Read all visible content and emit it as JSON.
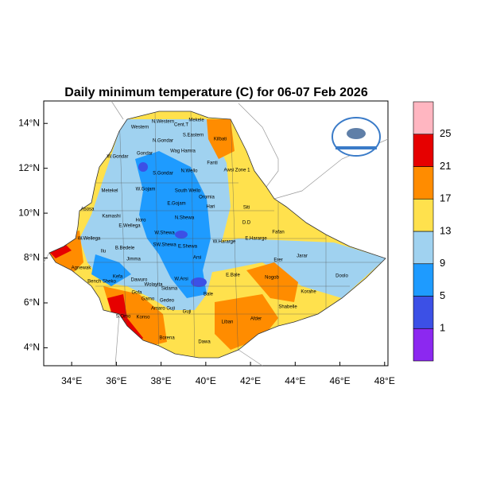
{
  "map": {
    "title": "Daily minimum temperature (C) for 06-07 Feb 2026",
    "xlim": [
      32.75,
      48.15
    ],
    "ylim": [
      3.2,
      15
    ],
    "xticks": [
      {
        "value": 34,
        "label": "34°E"
      },
      {
        "value": 36,
        "label": "36°E"
      },
      {
        "value": 38,
        "label": "38°E"
      },
      {
        "value": 40,
        "label": "40°E"
      },
      {
        "value": 42,
        "label": "42°E"
      },
      {
        "value": 44,
        "label": "44°E"
      },
      {
        "value": 46,
        "label": "46°E"
      },
      {
        "value": 48,
        "label": "48°E"
      }
    ],
    "yticks": [
      {
        "value": 4,
        "label": "4°N"
      },
      {
        "value": 6,
        "label": "6°N"
      },
      {
        "value": 8,
        "label": "8°N"
      },
      {
        "value": 10,
        "label": "10°N"
      },
      {
        "value": 12,
        "label": "12°N"
      },
      {
        "value": 14,
        "label": "14°N"
      }
    ],
    "colorbar": {
      "levels": [
        1,
        5,
        9,
        13,
        17,
        21,
        25
      ],
      "colors": [
        "#8c28f0",
        "#3c50e6",
        "#1e9bff",
        "#a0d2f0",
        "#ffe14d",
        "#ff8c00",
        "#e60000",
        "#ffb6c1"
      ]
    },
    "regions": [
      "Western",
      "N.Western",
      "Cent.T",
      "Mekele",
      "S.Eastern",
      "N.Gondar",
      "Kilbati",
      "Wag Hamra",
      "W.Gondar",
      "Gondar",
      "S.Gondar",
      "N.Wello",
      "Fanti",
      "Awsi Zone 1",
      "Metekel",
      "W.Gojam",
      "South Wello",
      "Oromia",
      "E.Gojam",
      "Hari",
      "Siti",
      "Asosa",
      "Kamashi",
      "Horo",
      "N.Shewa",
      "D.D",
      "Fafan",
      "W.Wellega",
      "E.Wellega",
      "W.Shewa",
      "W.Hararge",
      "E.Hararge",
      "Ilu",
      "B.Bedele",
      "SW.Shewa",
      "E.Shewa",
      "Arsi",
      "Jarar",
      "Jimma",
      "Erer",
      "Kefa",
      "Bench Sheko",
      "Agnewak",
      "Dawuro",
      "Wolayita",
      "Sidama",
      "W.Arsi",
      "E.Bale",
      "Nogob",
      "Doolo",
      "Gamo",
      "Gedeo",
      "Bale",
      "Korahe",
      "Gofa",
      "Shabelle",
      "Amaro Guji",
      "Konso",
      "S.Omo",
      "Guji",
      "Liban",
      "Afder",
      "Borena",
      "Dawa"
    ]
  }
}
